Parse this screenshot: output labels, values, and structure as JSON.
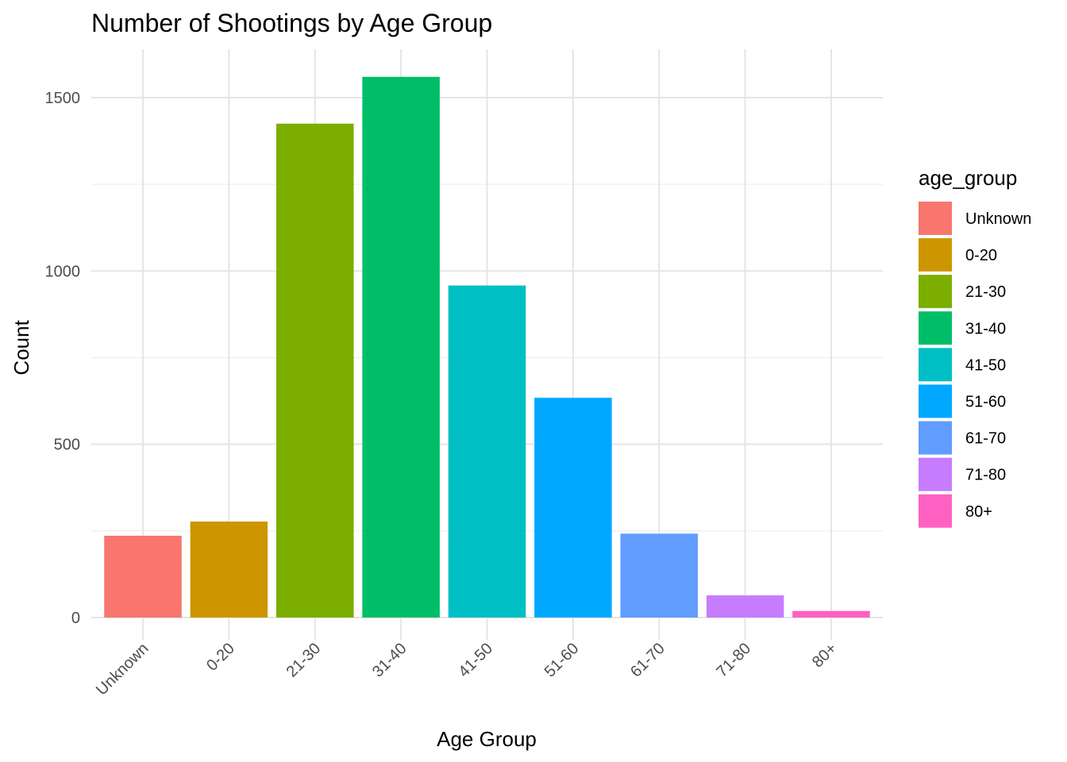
{
  "chart_data": {
    "type": "bar",
    "title": "Number of Shootings by Age Group",
    "xlabel": "Age Group",
    "ylabel": "Count",
    "categories": [
      "Unknown",
      "0-20",
      "21-30",
      "31-40",
      "41-50",
      "51-60",
      "61-70",
      "71-80",
      "80+"
    ],
    "values": [
      236,
      277,
      1425,
      1560,
      958,
      634,
      242,
      64,
      19
    ],
    "colors": [
      "#F8766D",
      "#CD9600",
      "#7CAE00",
      "#00BE67",
      "#00BFC4",
      "#00A9FF",
      "#619CFF",
      "#C77CFF",
      "#FF61C3"
    ],
    "ylim": [
      0,
      1600
    ],
    "yticks": [
      0,
      500,
      1000,
      1500
    ],
    "grid": true,
    "legend": {
      "title": "age_group",
      "position": "right",
      "entries": [
        "Unknown",
        "0-20",
        "21-30",
        "31-40",
        "41-50",
        "51-60",
        "61-70",
        "71-80",
        "80+"
      ]
    }
  }
}
